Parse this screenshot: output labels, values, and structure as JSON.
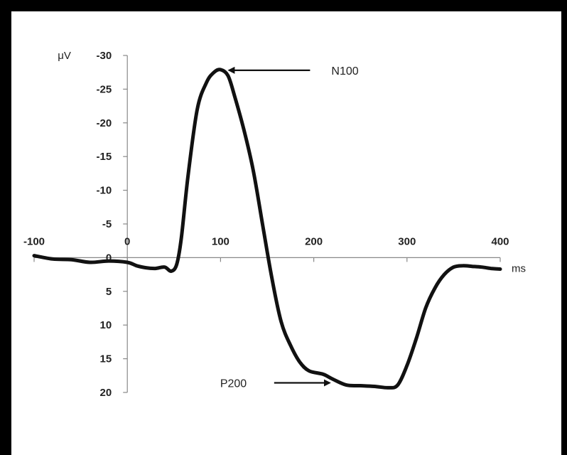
{
  "chart_data": {
    "type": "line",
    "title": "",
    "xlabel": "ms",
    "ylabel": "μV",
    "xlim": [
      -100,
      400
    ],
    "ylim": [
      -30,
      20
    ],
    "y_inverted": true,
    "x_ticks": [
      "-100",
      "0",
      "100",
      "200",
      "300",
      "400"
    ],
    "x_tick_values": [
      -100,
      0,
      100,
      200,
      300,
      400
    ],
    "y_ticks": [
      "-30",
      "-25",
      "-20",
      "-15",
      "-10",
      "-5",
      "0",
      "5",
      "10",
      "15",
      "20"
    ],
    "y_tick_values": [
      -30,
      -25,
      -20,
      -15,
      -10,
      -5,
      0,
      5,
      10,
      15,
      20
    ],
    "grid": false,
    "line_color": "#111111",
    "series": [
      {
        "x": [
          -100,
          -80,
          -60,
          -40,
          -20,
          0,
          10,
          20,
          30,
          40,
          47,
          53,
          58,
          65,
          75,
          85,
          93,
          100,
          108,
          115,
          125,
          135,
          145,
          155,
          165,
          175,
          185,
          195,
          210,
          220,
          235,
          250,
          265,
          280,
          290,
          300,
          310,
          320,
          330,
          340,
          350,
          360,
          370,
          380,
          390,
          400
        ],
        "y": [
          -0.3,
          0.2,
          0.3,
          0.7,
          0.5,
          0.7,
          1.2,
          1.5,
          1.6,
          1.4,
          2.0,
          1.0,
          -3.0,
          -12.0,
          -22.0,
          -26.0,
          -27.5,
          -27.9,
          -27.0,
          -24.0,
          -19.0,
          -13.0,
          -5.0,
          3.0,
          9.5,
          13.0,
          15.5,
          16.8,
          17.3,
          18.0,
          18.9,
          19.0,
          19.1,
          19.3,
          18.9,
          16.0,
          12.0,
          7.5,
          4.5,
          2.5,
          1.4,
          1.2,
          1.3,
          1.4,
          1.6,
          1.7
        ]
      }
    ],
    "annotations": [
      {
        "text": "N100",
        "x": 100,
        "y": -27.8,
        "arrow": "points-left-to-peak"
      },
      {
        "text": "P200",
        "x": 220,
        "y": 19.0,
        "arrow": "points-right-to-trough"
      }
    ]
  }
}
